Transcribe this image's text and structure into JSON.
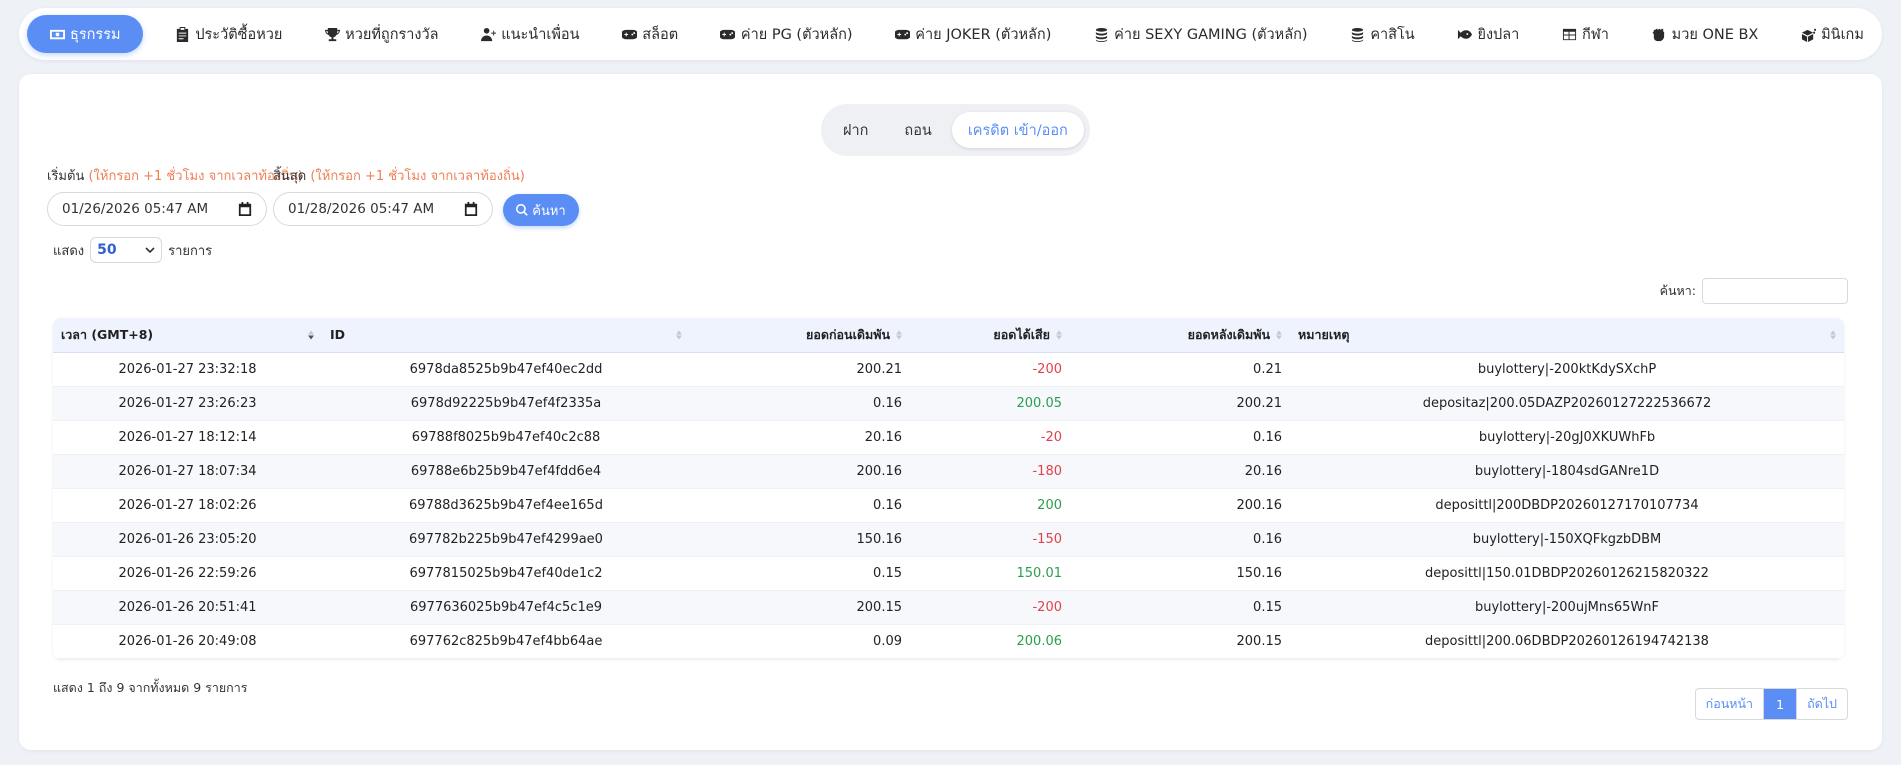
{
  "nav": {
    "items": [
      {
        "label": "ธุรกรรม",
        "icon": "money-icon",
        "active": true
      },
      {
        "label": "ประวัติซื้อหวย",
        "icon": "clipboard-icon"
      },
      {
        "label": "หวยที่ถูกรางวัล",
        "icon": "trophy-icon"
      },
      {
        "label": "แนะนำเพื่อน",
        "icon": "user-plus-icon"
      },
      {
        "label": "สล็อต",
        "icon": "gamepad-icon"
      },
      {
        "label": "ค่าย PG (ตัวหลัก)",
        "icon": "gamepad-icon"
      },
      {
        "label": "ค่าย JOKER (ตัวหลัก)",
        "icon": "gamepad-icon"
      },
      {
        "label": "ค่าย SEXY GAMING (ตัวหลัก)",
        "icon": "coins-icon"
      },
      {
        "label": "คาสิโน",
        "icon": "coins-icon"
      },
      {
        "label": "ยิงปลา",
        "icon": "fish-icon"
      },
      {
        "label": "กีฬา",
        "icon": "table-icon"
      },
      {
        "label": "มวย ONE BX",
        "icon": "fist-icon"
      },
      {
        "label": "มินิเกม",
        "icon": "dice-icon"
      }
    ]
  },
  "tabs": {
    "deposit": "ฝาก",
    "withdraw": "ถอน",
    "credit": "เครดิต เข้า/ออก"
  },
  "filters": {
    "start_label": "เริ่มต้น",
    "start_hint": "(ให้กรอก +1 ชั่วโมง จากเวลาท้องถิ่น)",
    "end_label": "สิ้นสุด",
    "end_hint": "(ให้กรอก +1 ชั่วโมง จากเวลาท้องถิ่น)",
    "start_value": "01/26/2026 05:47  AM",
    "end_value": "01/28/2026 05:47  AM",
    "search_label": "ค้นหา"
  },
  "length": {
    "prefix": "แสดง",
    "value": "50",
    "suffix": "รายการ"
  },
  "table_search_label": "ค้นหา:",
  "table": {
    "headers": {
      "time": "เวลา (GMT+8)",
      "id": "ID",
      "before": "ยอดก่อนเดิมพัน",
      "amount": "ยอดได้เสีย",
      "after": "ยอดหลังเดิมพัน",
      "note": "หมายเหตุ"
    },
    "rows": [
      {
        "time": "2026-01-27 23:32:18",
        "id": "6978da8525b9b47ef40ec2dd",
        "before": "200.21",
        "amount": "-200",
        "after": "0.21",
        "note": "buylottery|-200ktKdySXchP"
      },
      {
        "time": "2026-01-27 23:26:23",
        "id": "6978d92225b9b47ef4f2335a",
        "before": "0.16",
        "amount": "200.05",
        "after": "200.21",
        "note": "depositaz|200.05DAZP20260127222536672"
      },
      {
        "time": "2026-01-27 18:12:14",
        "id": "69788f8025b9b47ef40c2c88",
        "before": "20.16",
        "amount": "-20",
        "after": "0.16",
        "note": "buylottery|-20gJ0XKUWhFb"
      },
      {
        "time": "2026-01-27 18:07:34",
        "id": "69788e6b25b9b47ef4fdd6e4",
        "before": "200.16",
        "amount": "-180",
        "after": "20.16",
        "note": "buylottery|-1804sdGANre1D"
      },
      {
        "time": "2026-01-27 18:02:26",
        "id": "69788d3625b9b47ef4ee165d",
        "before": "0.16",
        "amount": "200",
        "after": "200.16",
        "note": "deposittl|200DBDP20260127170107734"
      },
      {
        "time": "2026-01-26 23:05:20",
        "id": "697782b225b9b47ef4299ae0",
        "before": "150.16",
        "amount": "-150",
        "after": "0.16",
        "note": "buylottery|-150XQFkgzbDBM"
      },
      {
        "time": "2026-01-26 22:59:26",
        "id": "6977815025b9b47ef40de1c2",
        "before": "0.15",
        "amount": "150.01",
        "after": "150.16",
        "note": "deposittl|150.01DBDP20260126215820322"
      },
      {
        "time": "2026-01-26 20:51:41",
        "id": "6977636025b9b47ef4c5c1e9",
        "before": "200.15",
        "amount": "-200",
        "after": "0.15",
        "note": "buylottery|-200ujMns65WnF"
      },
      {
        "time": "2026-01-26 20:49:08",
        "id": "697762c825b9b47ef4bb64ae",
        "before": "0.09",
        "amount": "200.06",
        "after": "200.15",
        "note": "deposittl|200.06DBDP20260126194742138"
      }
    ]
  },
  "footer": {
    "info": "แสดง 1 ถึง 9 จากทั้งหมด 9 รายการ",
    "prev": "ก่อนหน้า",
    "current": "1",
    "next": "ถัดไป"
  },
  "colors": {
    "accent": "#5b8ef5",
    "negative": "#e0424c",
    "positive": "#2c9d4e",
    "hint": "#f07f55"
  }
}
